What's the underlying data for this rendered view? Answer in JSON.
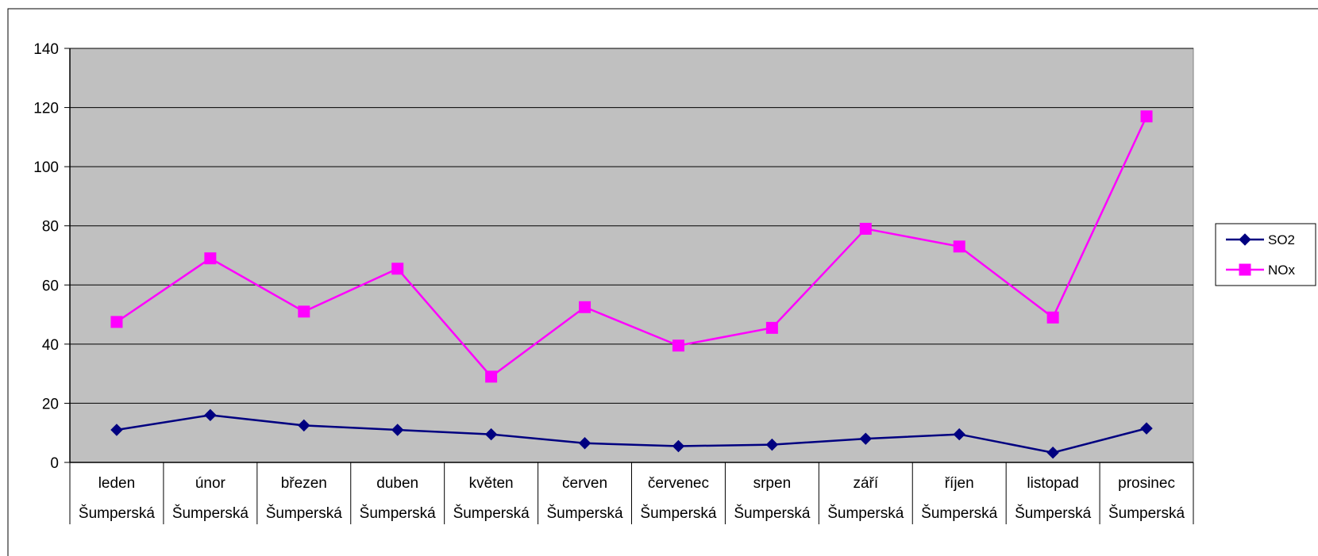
{
  "chart_data": {
    "type": "line",
    "title": "",
    "xlabel": "",
    "ylabel": "",
    "ylim": [
      0,
      140
    ],
    "yticks": [
      0,
      20,
      40,
      60,
      80,
      100,
      120,
      140
    ],
    "grid": true,
    "legend_position": "right",
    "plot_background": "#c0c0c0",
    "categories": [
      "leden",
      "únor",
      "březen",
      "duben",
      "květen",
      "červen",
      "červenec",
      "srpen",
      "září",
      "říjen",
      "listopad",
      "prosinec"
    ],
    "category_sublabel": "Šumperská",
    "series": [
      {
        "name": "SO2",
        "color": "#000080",
        "marker": "diamond",
        "values": [
          11,
          16,
          12.5,
          11,
          9.5,
          6.5,
          5.5,
          6,
          8,
          9.5,
          3.3,
          11.5
        ]
      },
      {
        "name": "NOx",
        "color": "#ff00ff",
        "marker": "square",
        "values": [
          47.5,
          69,
          51,
          65.5,
          29,
          52.5,
          39.5,
          45.5,
          79,
          73,
          49,
          117
        ]
      }
    ]
  }
}
